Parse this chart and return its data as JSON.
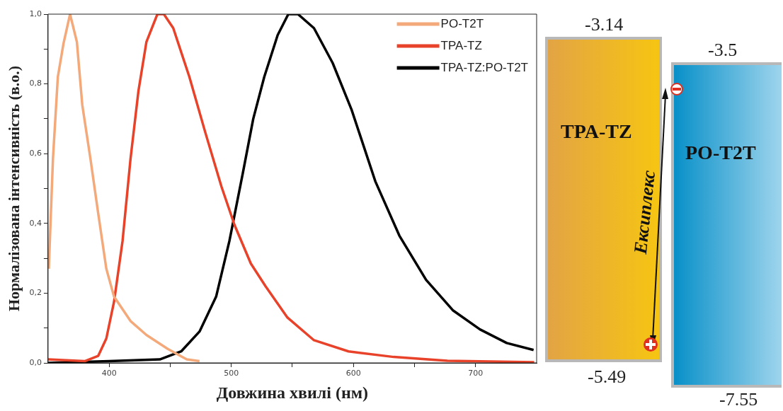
{
  "chart_data": [
    {
      "type": "line",
      "xlabel": "Довжина хвилі (нм)",
      "ylabel": "Нормалізована інтенсивність (в.о.)",
      "xlim": [
        350,
        750
      ],
      "xticks": [
        {
          "value": 400,
          "label": "400"
        },
        {
          "value": 450,
          "label": null
        },
        {
          "value": 500,
          "label": "500"
        },
        {
          "value": 550,
          "label": null
        },
        {
          "value": 600,
          "label": "600"
        },
        {
          "value": 650,
          "label": null
        },
        {
          "value": 700,
          "label": "700"
        }
      ],
      "ylim": [
        0,
        1
      ],
      "yticks": [
        {
          "value": 0,
          "label": "0,0"
        },
        {
          "value": 0.1,
          "label": null
        },
        {
          "value": 0.2,
          "label": "0,2"
        },
        {
          "value": 0.3,
          "label": null
        },
        {
          "value": 0.4,
          "label": "0,4"
        },
        {
          "value": 0.5,
          "label": null
        },
        {
          "value": 0.6,
          "label": "0,6"
        },
        {
          "value": 0.7,
          "label": null
        },
        {
          "value": 0.8,
          "label": "0,8"
        },
        {
          "value": 0.9,
          "label": null
        },
        {
          "value": 1,
          "label": "1,0"
        }
      ],
      "grid": false,
      "legend": "top right",
      "marker": "none",
      "line_style": "solid",
      "series": [
        {
          "name": "PO-T2T",
          "color": "#f4a97a",
          "x": [
            350.6,
            354,
            358,
            362.6,
            368,
            373.6,
            378,
            384.7,
            391,
            397.7,
            404,
            417.5,
            430.5,
            448,
            463.6,
            474
          ],
          "values": [
            0.27,
            0.585,
            0.82,
            0.915,
            1.0,
            0.92,
            0.74,
            0.585,
            0.43,
            0.27,
            0.19,
            0.12,
            0.08,
            0.04,
            0.01,
            0.005
          ]
        },
        {
          "name": "TPA-TZ",
          "color": "#e8432a",
          "x": [
            350,
            380,
            391,
            397.7,
            404,
            411,
            417.5,
            424,
            430.5,
            439.5,
            444.8,
            452.5,
            465.7,
            478.8,
            492,
            502.7,
            516,
            528,
            546,
            567.7,
            596,
            633,
            677,
            748
          ],
          "values": [
            0.01,
            0.005,
            0.02,
            0.07,
            0.175,
            0.35,
            0.585,
            0.78,
            0.92,
            1.0,
            1.0,
            0.96,
            0.82,
            0.66,
            0.505,
            0.395,
            0.285,
            0.22,
            0.13,
            0.065,
            0.033,
            0.017,
            0.006,
            0.002
          ]
        },
        {
          "name": "TPA-TZ:PO-T2T",
          "color": "#000000",
          "x": [
            350,
            400,
            441.5,
            459,
            474,
            487.6,
            498.5,
            509.5,
            518,
            527,
            538,
            546.7,
            554.6,
            567.7,
            583,
            598.5,
            618,
            637.6,
            659.5,
            681.7,
            703.6,
            725.5,
            747.5
          ],
          "values": [
            0,
            0.005,
            0.01,
            0.033,
            0.09,
            0.19,
            0.35,
            0.545,
            0.7,
            0.82,
            0.94,
            1.0,
            1.0,
            0.96,
            0.86,
            0.726,
            0.52,
            0.365,
            0.238,
            0.15,
            0.096,
            0.057,
            0.037
          ]
        }
      ]
    },
    {
      "type": "other",
      "categories": [
        "TPA-TZ",
        "PO-T2T"
      ],
      "annotations": [
        "-3.14",
        "-5.49",
        "-3.5",
        "-7.55",
        "Ексиплекс"
      ]
    }
  ]
}
